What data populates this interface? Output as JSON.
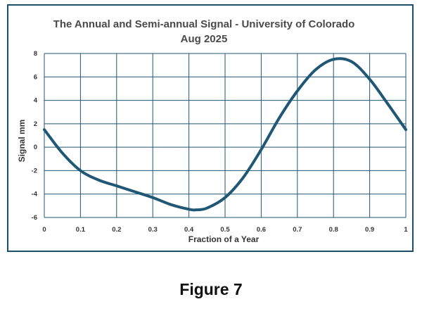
{
  "caption": "Figure 7",
  "chart_data": {
    "type": "line",
    "title": "The Annual and Semi-annual Signal - University of Colorado",
    "subtitle": "Aug 2025",
    "xlabel": "Fraction of a Year",
    "ylabel": "Signal mm",
    "xlim": [
      0,
      1
    ],
    "ylim": [
      -6,
      8
    ],
    "xticks": [
      "0",
      "0.1",
      "0.2",
      "0.3",
      "0.4",
      "0.5",
      "0.6",
      "0.7",
      "0.8",
      "0.9",
      "1"
    ],
    "yticks": [
      "8",
      "6",
      "4",
      "2",
      "0",
      "-2",
      "-4",
      "-6"
    ],
    "grid": true,
    "line_color": "#1f5775",
    "series": [
      {
        "x": [
          0,
          0.05,
          0.1,
          0.15,
          0.2,
          0.25,
          0.3,
          0.35,
          0.4,
          0.42,
          0.45,
          0.5,
          0.55,
          0.6,
          0.65,
          0.7,
          0.75,
          0.8,
          0.85,
          0.9,
          0.95,
          1.0
        ],
        "y": [
          1.5,
          -0.5,
          -2.0,
          -2.8,
          -3.3,
          -3.8,
          -4.3,
          -4.9,
          -5.3,
          -5.35,
          -5.2,
          -4.3,
          -2.6,
          -0.2,
          2.5,
          4.8,
          6.6,
          7.5,
          7.3,
          5.8,
          3.7,
          1.5
        ]
      }
    ]
  }
}
